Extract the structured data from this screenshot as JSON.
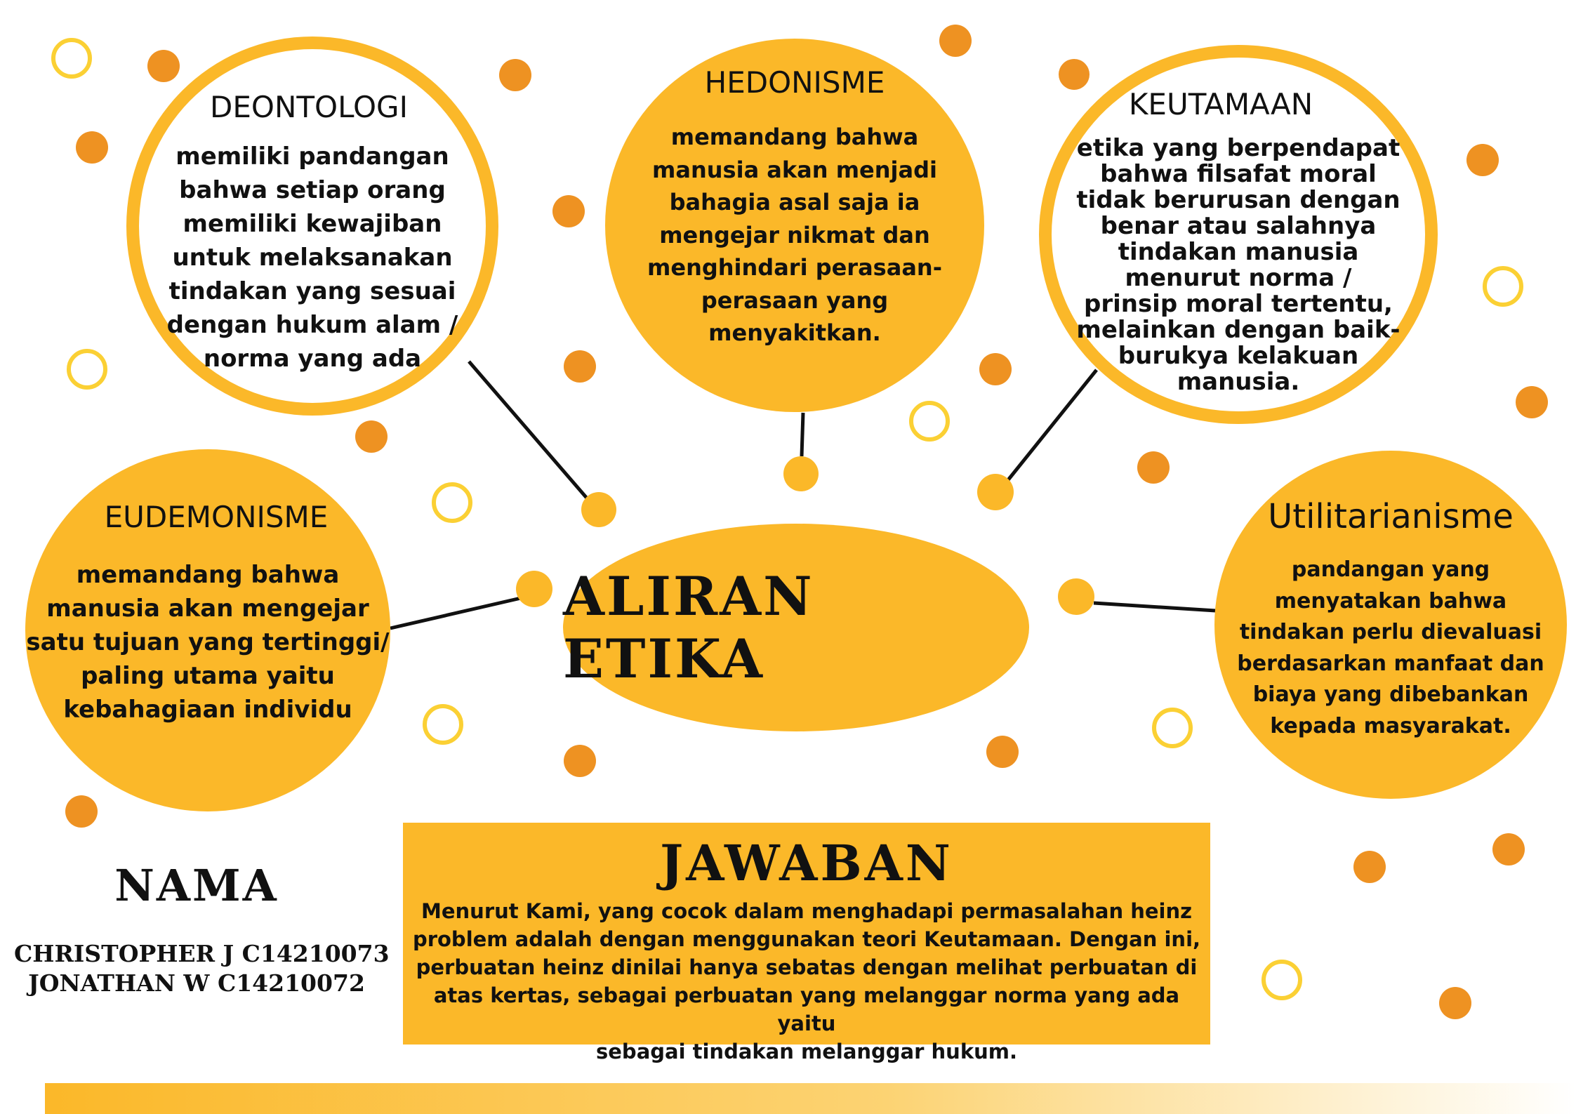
{
  "center": {
    "label": "ALIRAN ETIKA"
  },
  "nodes": {
    "deontologi": {
      "title": "DEONTOLOGI",
      "text": "memiliki pandangan\nbahwa setiap orang\nmemiliki kewajiban\nuntuk melaksanakan\ntindakan yang sesuai\ndengan hukum alam /\nnorma yang ada"
    },
    "hedonisme": {
      "title": "HEDONISME",
      "text": "memandang bahwa\nmanusia akan menjadi\nbahagia asal saja ia\nmengejar nikmat dan\nmenghindari perasaan-\nperasaan yang\nmenyakitkan."
    },
    "keutamaan": {
      "title": "KEUTAMAAN",
      "text": "etika yang berpendapat\nbahwa filsafat moral\ntidak berurusan dengan\nbenar atau salahnya\ntindakan manusia\nmenurut norma /\nprinsip moral tertentu,\nmelainkan dengan baik-\nburukya kelakuan\nmanusia."
    },
    "eudemonisme": {
      "title": "EUDEMONISME",
      "text": "memandang bahwa\nmanusia akan mengejar\nsatu tujuan yang tertinggi/\npaling utama yaitu\nkebahagiaan individu"
    },
    "utilitarianisme": {
      "title": "Utilitarianisme",
      "text": "pandangan yang\nmenyatakan bahwa\ntindakan perlu dievaluasi\nberdasarkan manfaat dan\nbiaya yang dibebankan\nkepada masyarakat."
    }
  },
  "answer": {
    "title": "JAWABAN",
    "text": "Menurut Kami, yang cocok dalam menghadapi permasalahan heinz\nproblem adalah dengan menggunakan teori Keutamaan. Dengan ini,\nperbuatan heinz dinilai hanya sebatas dengan melihat perbuatan di\natas kertas, sebagai perbuatan yang melanggar norma yang ada yaitu\nsebagai tindakan melanggar hukum."
  },
  "names": {
    "label": "NAMA",
    "members": [
      "CHRISTOPHER J  C14210073",
      "JONATHAN W C14210072"
    ]
  },
  "colors": {
    "primary": "#fbb829",
    "accent_dot": "#ee9222",
    "ring": "#fbd034",
    "line": "#111111",
    "background": "#ffffff"
  }
}
